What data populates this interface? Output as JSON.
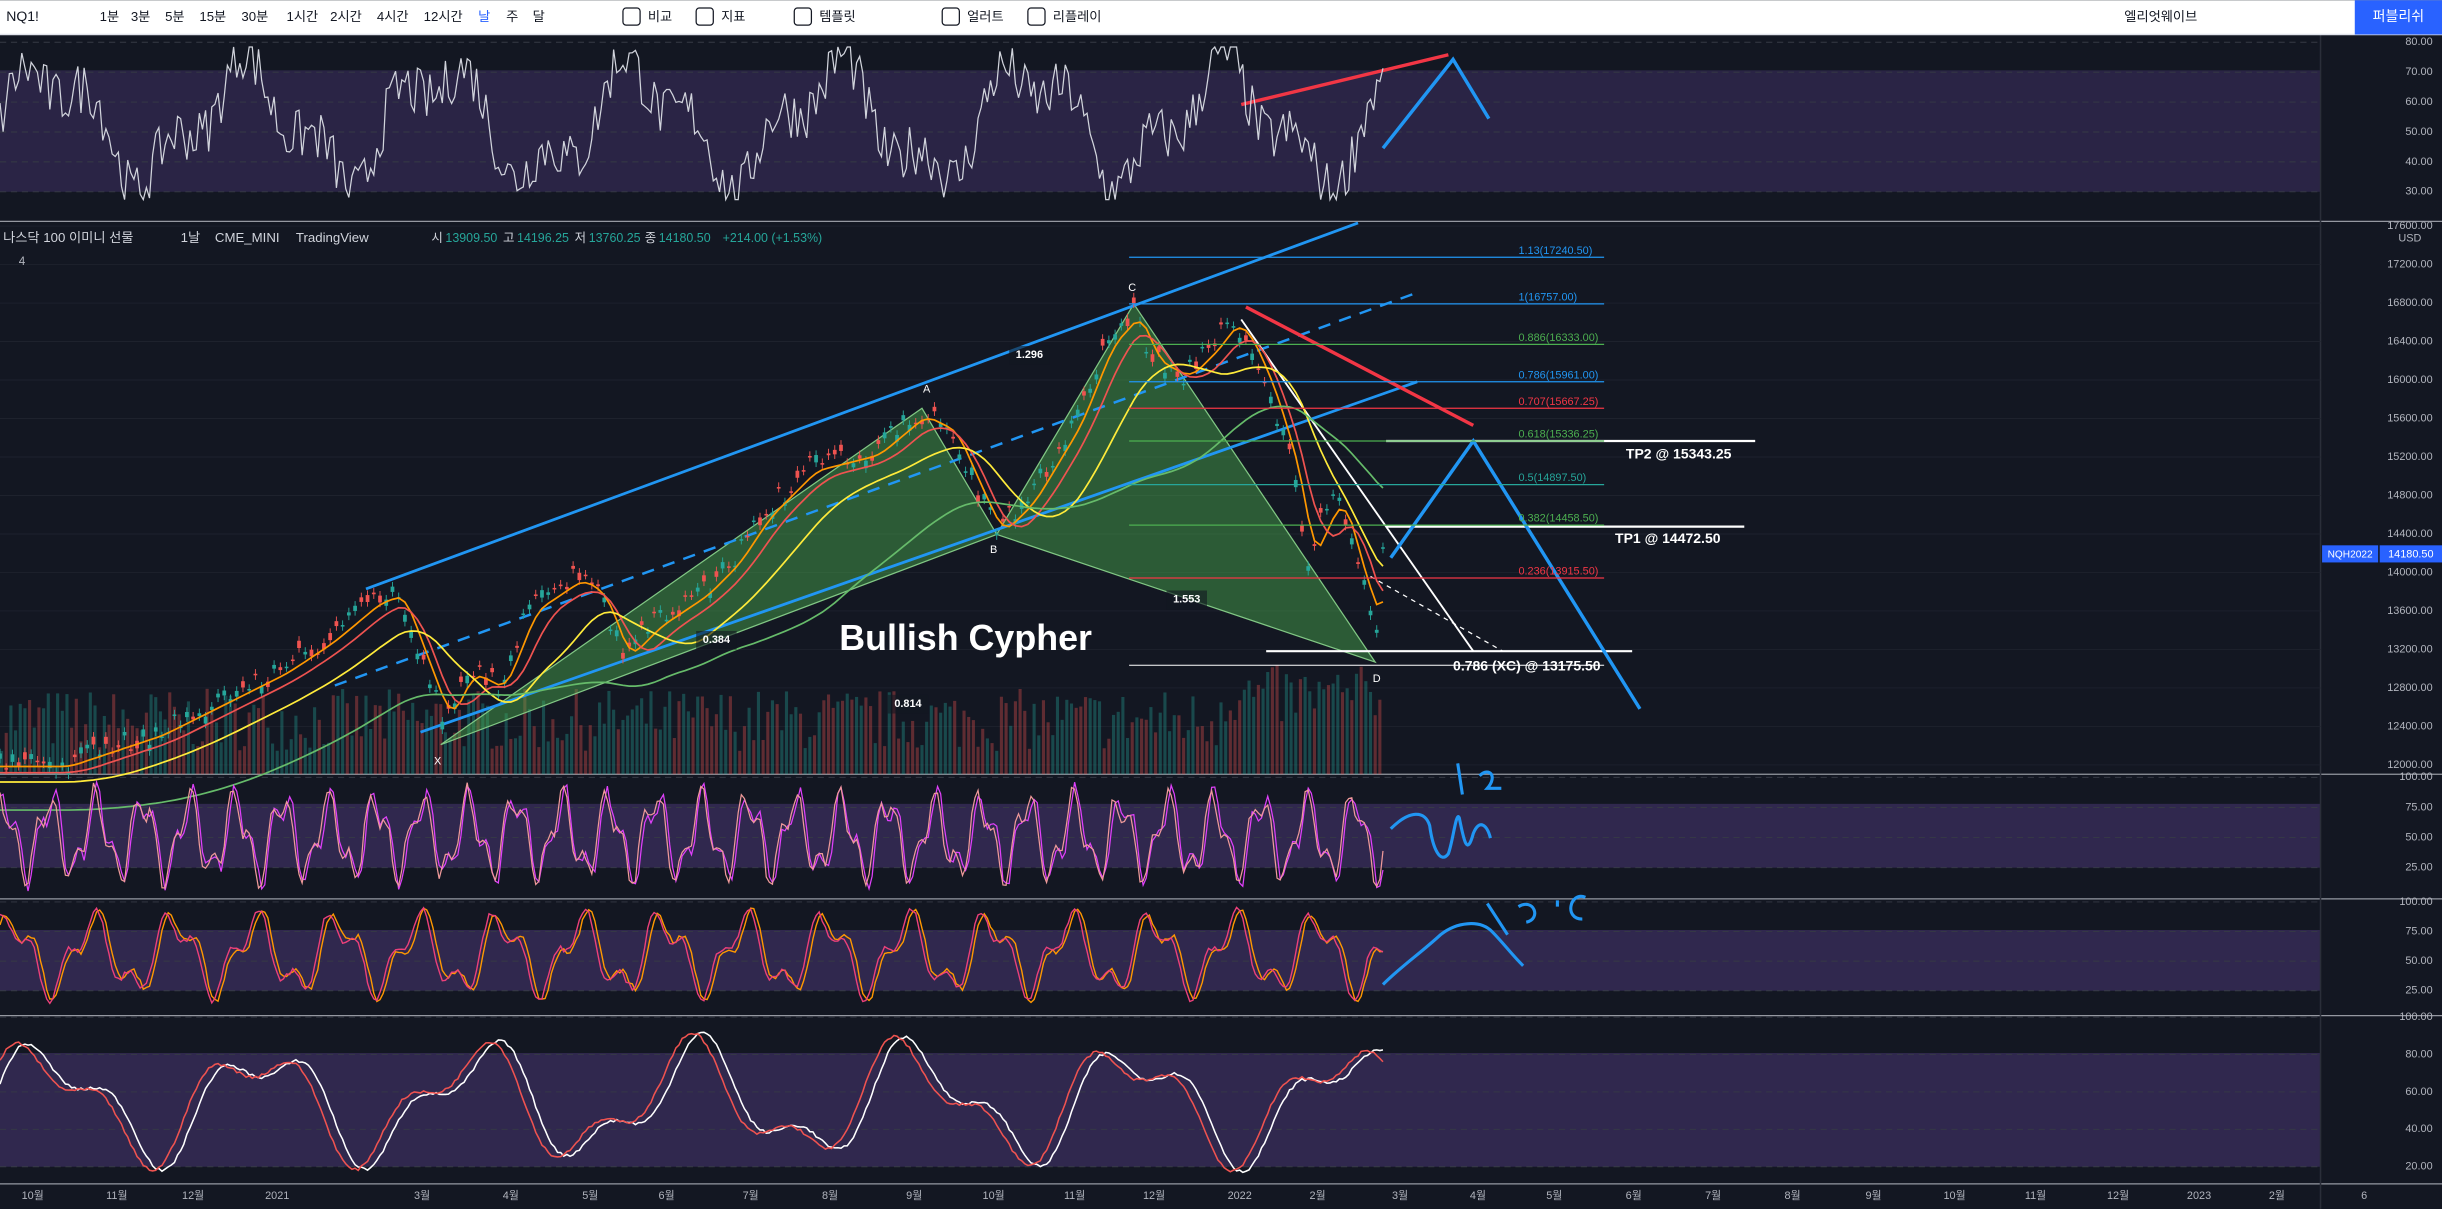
{
  "toolbar": {
    "symbol": "NQ1!",
    "intervals": [
      "1분",
      "3분",
      "5분",
      "15분",
      "30분",
      "1시간",
      "2시간",
      "4시간",
      "12시간",
      "날",
      "주",
      "달"
    ],
    "buttons": [
      "비교",
      "지표",
      "템플릿",
      "얼러트",
      "리플레이"
    ],
    "layout": "엘리엇웨이브",
    "publish": "퍼블리쉬"
  },
  "legend": {
    "title": "나스닥 100 이미니 선물",
    "interval": "1날",
    "exchange": "CME_MINI",
    "source": "TradingView",
    "ohlc": [
      {
        "label": "시",
        "value": "13909.50"
      },
      {
        "label": "고",
        "value": "14196.25"
      },
      {
        "label": "저",
        "value": "13760.25"
      },
      {
        "label": "종",
        "value": "14180.50"
      }
    ],
    "change": "+214.00 (+1.53%)",
    "count": "4"
  },
  "currency": "USD",
  "price_tag": {
    "symbol": "NQH2022",
    "price": "14180.50"
  },
  "panels": [
    {
      "ticks": [
        {
          "value": 80,
          "label": "80.00"
        },
        {
          "value": 70,
          "label": "70.00"
        },
        {
          "value": 60,
          "label": "60.00"
        },
        {
          "value": 50,
          "label": "50.00"
        },
        {
          "value": 40,
          "label": "40.00"
        },
        {
          "value": 30,
          "label": "30.00"
        }
      ]
    },
    {
      "ticks": [
        {
          "value": 17600,
          "label": "17600.00"
        },
        {
          "value": 17200,
          "label": "17200.00"
        },
        {
          "value": 16800,
          "label": "16800.00"
        },
        {
          "value": 16400,
          "label": "16400.00"
        },
        {
          "value": 16000,
          "label": "16000.00"
        },
        {
          "value": 15600,
          "label": "15600.00"
        },
        {
          "value": 15200,
          "label": "15200.00"
        },
        {
          "value": 14800,
          "label": "14800.00"
        },
        {
          "value": 14400,
          "label": "14400.00"
        },
        {
          "value": 14000,
          "label": "14000.00"
        },
        {
          "value": 13600,
          "label": "13600.00"
        },
        {
          "value": 13200,
          "label": "13200.00"
        },
        {
          "value": 12800,
          "label": "12800.00"
        },
        {
          "value": 12400,
          "label": "12400.00"
        },
        {
          "value": 12000,
          "label": "12000.00"
        }
      ]
    },
    {
      "ticks": [
        {
          "value": 100,
          "label": "100.00"
        },
        {
          "value": 75,
          "label": "75.00"
        },
        {
          "value": 50,
          "label": "50.00"
        },
        {
          "value": 25,
          "label": "25.00"
        }
      ]
    },
    {
      "ticks": [
        {
          "value": 100,
          "label": "100.00"
        },
        {
          "value": 75,
          "label": "75.00"
        },
        {
          "value": 50,
          "label": "50.00"
        },
        {
          "value": 25,
          "label": "25.00"
        }
      ]
    },
    {
      "ticks": [
        {
          "value": 100,
          "label": "100.00"
        },
        {
          "value": 80,
          "label": "80.00"
        },
        {
          "value": 60,
          "label": "60.00"
        },
        {
          "value": 40,
          "label": "40.00"
        },
        {
          "value": 20,
          "label": "20.00"
        }
      ]
    }
  ],
  "time_axis": [
    "10월",
    "11월",
    "12월",
    "2021",
    "3월",
    "4월",
    "5월",
    "6월",
    "7월",
    "8월",
    "9월",
    "10월",
    "11월",
    "12월",
    "2022",
    "2월",
    "3월",
    "4월",
    "5월",
    "6월",
    "7월",
    "8월",
    "9월",
    "10월",
    "11월",
    "12월",
    "2023",
    "2월",
    "6"
  ],
  "pattern": {
    "title": "Bullish Cypher",
    "points": [
      "X",
      "A",
      "B",
      "C",
      "D"
    ],
    "ratios": [
      "1.296",
      "0.384",
      "1.553",
      "0.814"
    ]
  },
  "fib_levels": [
    "1.13(17240.50)",
    "1(16757.00)",
    "0.886(16333.00)",
    "0.786(15961.00)",
    "0.707(15667.25)",
    "0.618(15336.25)",
    "0.5(14897.50)",
    "0.382(14458.50)",
    "0.236(13915.50)"
  ],
  "targets": [
    "TP2 @ 15343.25",
    "TP1 @ 14472.50",
    "0.786 (XC) @ 13175.50"
  ]
}
